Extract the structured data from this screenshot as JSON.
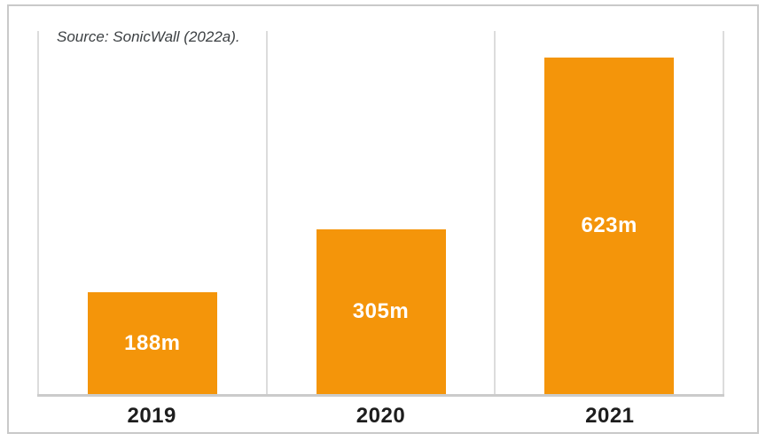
{
  "source_note": "Source: SonicWall (2022a).",
  "colors": {
    "bar": "#F4950A",
    "bar_label_text": "#ffffff",
    "tick_text": "#1d1d1d",
    "source_text": "#3c4043",
    "frame_border": "#c9c9c9",
    "baseline": "#cbcbcb",
    "divider": "#dcdcdc"
  },
  "chart_data": {
    "type": "bar",
    "title": "",
    "categories": [
      "2019",
      "2020",
      "2021"
    ],
    "values": [
      188,
      305,
      623
    ],
    "value_labels": [
      "188m",
      "305m",
      "623m"
    ],
    "unit": "million",
    "xlabel": "",
    "ylabel": "",
    "ylim": [
      0,
      672
    ],
    "grid": "vertical-section-dividers",
    "legend": "none",
    "annotations": [
      "Source: SonicWall (2022a)."
    ]
  }
}
